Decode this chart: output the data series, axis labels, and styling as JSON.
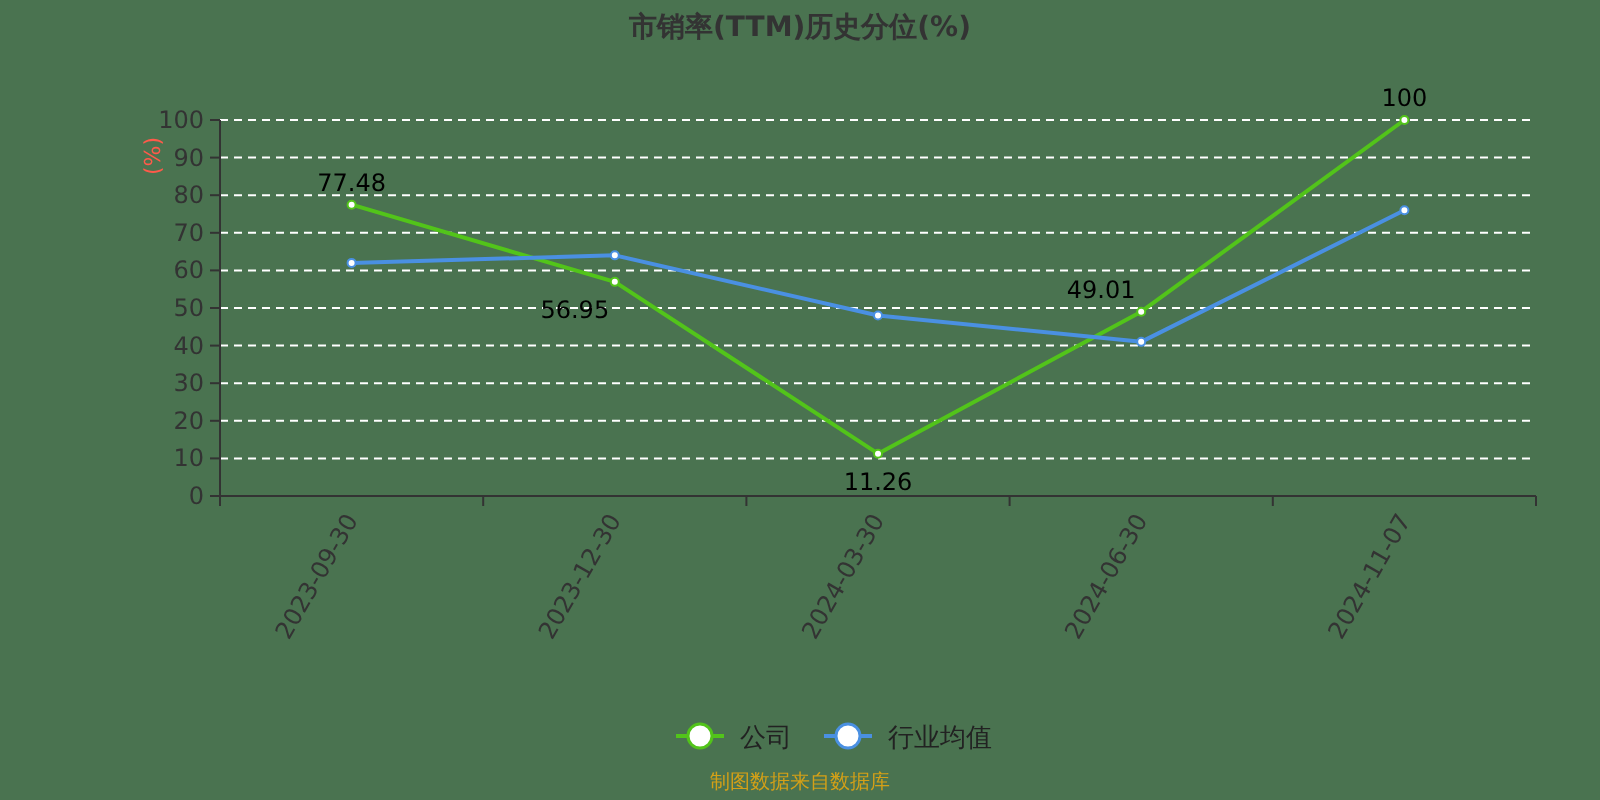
{
  "chart_data": {
    "type": "line",
    "title": "市销率(TTM)历史分位(%)",
    "ylabel": "(%)",
    "categories": [
      "2023-09-30",
      "2023-12-30",
      "2024-03-30",
      "2024-06-30",
      "2024-11-07"
    ],
    "series": [
      {
        "name": "公司",
        "color": "#52c41a",
        "values": [
          77.48,
          56.95,
          11.26,
          49.01,
          100
        ],
        "value_labels": [
          "77.48",
          "56.95",
          "11.26",
          "49.01",
          "100"
        ]
      },
      {
        "name": "行业均值",
        "color": "#4a90e2",
        "values": [
          62,
          64,
          48,
          41,
          76
        ]
      }
    ],
    "ylim": [
      0,
      100
    ],
    "yticks": [
      0,
      10,
      20,
      30,
      40,
      50,
      60,
      70,
      80,
      90,
      100
    ],
    "grid": "y",
    "legend": "bottom",
    "marker": "circle",
    "annotations": [
      "制图数据来自数据库"
    ]
  }
}
